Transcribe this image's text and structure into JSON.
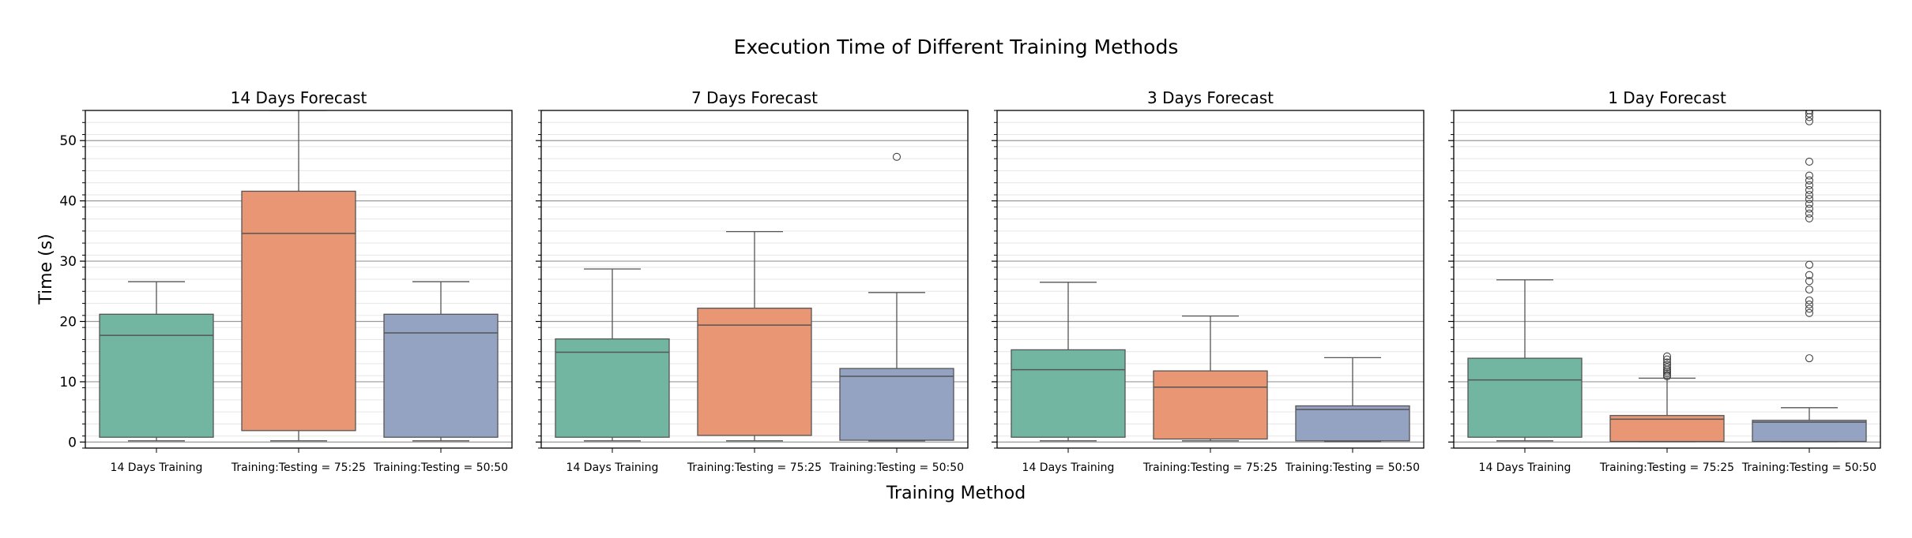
{
  "title": "Execution Time of Different Training Methods",
  "xlabel": "Training Method",
  "ylabel": "Time (s)",
  "colors": {
    "14 Days Training": "#72b6a1",
    "Training:Testing = 75:25": "#e99675",
    "Training:Testing = 50:50": "#95a3c3"
  },
  "chart_data": [
    {
      "type": "box",
      "title": "14 Days Forecast",
      "categories": [
        "14 Days Training",
        "Training:Testing = 75:25",
        "Training:Testing = 50:50"
      ],
      "ylim": [
        -1,
        55
      ],
      "yticks": [
        0,
        10,
        20,
        30,
        40,
        50
      ],
      "grid": true,
      "boxes": [
        {
          "min": 0.2,
          "q1": 0.8,
          "median": 17.7,
          "q3": 21.2,
          "max": 26.6,
          "outliers": []
        },
        {
          "min": 0.2,
          "q1": 1.9,
          "median": 34.6,
          "q3": 41.6,
          "max": 55.0,
          "outliers": []
        },
        {
          "min": 0.2,
          "q1": 0.8,
          "median": 18.1,
          "q3": 21.2,
          "max": 26.6,
          "outliers": []
        }
      ]
    },
    {
      "type": "box",
      "title": "7 Days Forecast",
      "categories": [
        "14 Days Training",
        "Training:Testing = 75:25",
        "Training:Testing = 50:50"
      ],
      "ylim": [
        -1,
        55
      ],
      "yticks": [
        0,
        10,
        20,
        30,
        40,
        50
      ],
      "grid": true,
      "boxes": [
        {
          "min": 0.2,
          "q1": 0.8,
          "median": 14.9,
          "q3": 17.1,
          "max": 28.7,
          "outliers": []
        },
        {
          "min": 0.2,
          "q1": 1.1,
          "median": 19.4,
          "q3": 22.2,
          "max": 34.9,
          "outliers": []
        },
        {
          "min": 0.2,
          "q1": 0.3,
          "median": 10.9,
          "q3": 12.2,
          "max": 24.8,
          "outliers": [
            47.3
          ]
        }
      ]
    },
    {
      "type": "box",
      "title": "3 Days Forecast",
      "categories": [
        "14 Days Training",
        "Training:Testing = 75:25",
        "Training:Testing = 50:50"
      ],
      "ylim": [
        -1,
        55
      ],
      "yticks": [
        0,
        10,
        20,
        30,
        40,
        50
      ],
      "grid": true,
      "boxes": [
        {
          "min": 0.2,
          "q1": 0.8,
          "median": 12.0,
          "q3": 15.3,
          "max": 26.5,
          "outliers": []
        },
        {
          "min": 0.2,
          "q1": 0.5,
          "median": 9.1,
          "q3": 11.8,
          "max": 20.9,
          "outliers": []
        },
        {
          "min": 0.1,
          "q1": 0.2,
          "median": 5.4,
          "q3": 6.0,
          "max": 14.0,
          "outliers": []
        }
      ]
    },
    {
      "type": "box",
      "title": "1 Day Forecast",
      "categories": [
        "14 Days Training",
        "Training:Testing = 75:25",
        "Training:Testing = 50:50"
      ],
      "ylim": [
        -1,
        55
      ],
      "yticks": [
        0,
        10,
        20,
        30,
        40,
        50
      ],
      "grid": true,
      "boxes": [
        {
          "min": 0.2,
          "q1": 0.8,
          "median": 10.3,
          "q3": 13.9,
          "max": 26.9,
          "outliers": []
        },
        {
          "min": 0.1,
          "q1": 0.1,
          "median": 3.8,
          "q3": 4.4,
          "max": 10.6,
          "outliers": [
            10.9,
            11.1,
            11.4,
            11.7,
            12.0,
            12.4,
            12.8,
            13.2,
            13.7,
            14.2
          ]
        },
        {
          "min": 0.1,
          "q1": 0.1,
          "median": 3.3,
          "q3": 3.6,
          "max": 5.7,
          "outliers": [
            13.9,
            21.4,
            22.1,
            22.8,
            23.5,
            25.3,
            26.7,
            27.7,
            29.4,
            37.1,
            37.9,
            38.7,
            39.5,
            40.3,
            41.0,
            41.8,
            42.6,
            43.4,
            44.2,
            46.5,
            53.2,
            53.9,
            54.5,
            55.0
          ]
        }
      ]
    }
  ]
}
